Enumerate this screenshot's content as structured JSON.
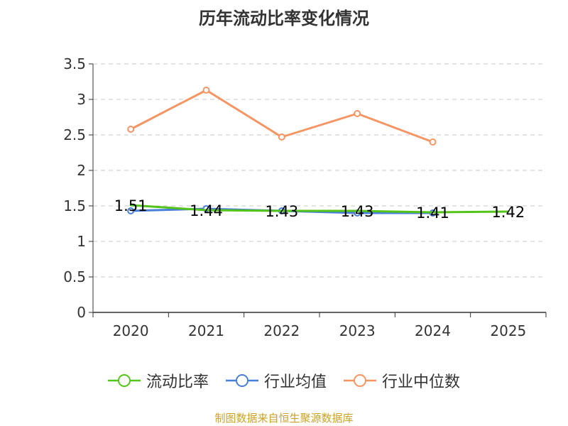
{
  "chart_data": {
    "type": "line",
    "title": "历年流动比率变化情况",
    "categories": [
      "2020",
      "2021",
      "2022",
      "2023",
      "2024",
      "2025"
    ],
    "ylim": [
      0,
      3.5
    ],
    "yticks": [
      "0",
      "0.5",
      "1",
      "1.5",
      "2",
      "2.5",
      "3",
      "3.5"
    ],
    "grid": true,
    "legend_position": "bottom",
    "series": [
      {
        "name": "流动比率",
        "color": "#52c41a",
        "values": [
          1.51,
          1.44,
          1.43,
          1.43,
          1.41,
          1.42
        ],
        "labels": [
          "1.51",
          "1.44",
          "1.43",
          "1.43",
          "1.41",
          "1.42"
        ],
        "show_markers": false
      },
      {
        "name": "行业均值",
        "color": "#4a7fd9",
        "values": [
          1.43,
          1.46,
          1.43,
          1.4,
          1.4,
          null
        ],
        "show_markers": true
      },
      {
        "name": "行业中位数",
        "color": "#f59563",
        "values": [
          2.58,
          3.13,
          2.47,
          2.8,
          2.4,
          null
        ],
        "show_markers": true
      }
    ]
  },
  "footer": {
    "source": "制图数据来自恒生聚源数据库"
  }
}
